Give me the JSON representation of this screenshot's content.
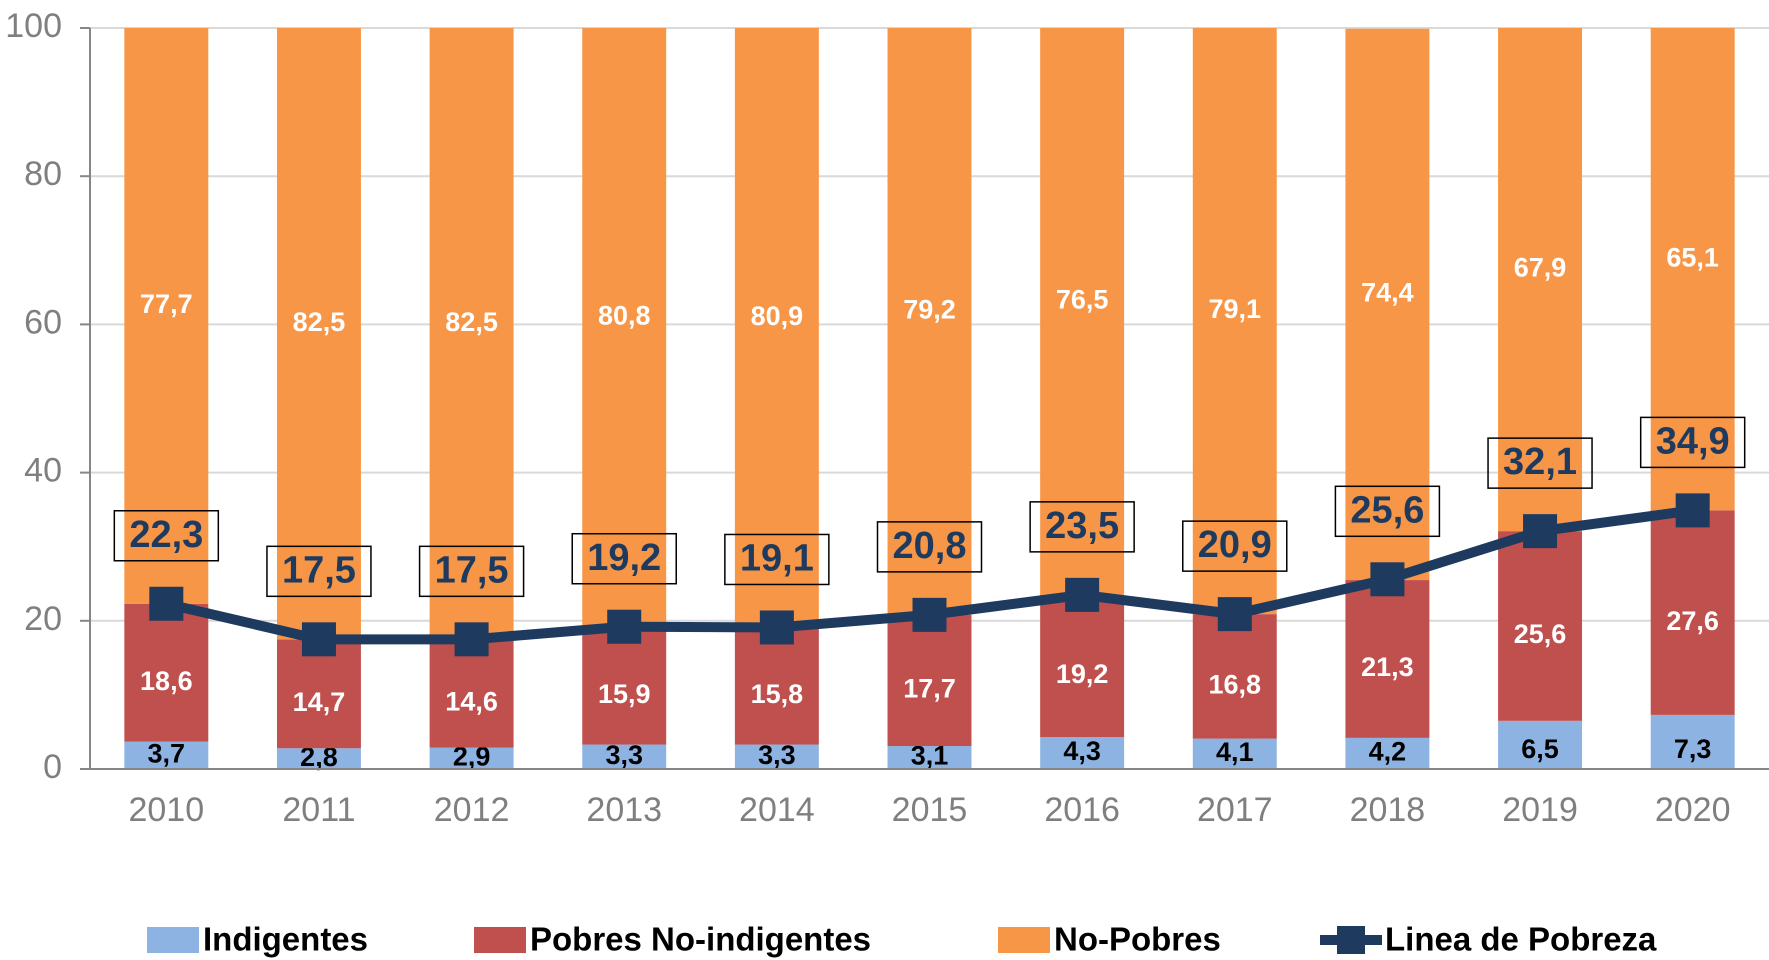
{
  "chart_data": {
    "type": "bar",
    "stacked": true,
    "categories": [
      "2010",
      "2011",
      "2012",
      "2013",
      "2014",
      "2015",
      "2016",
      "2017",
      "2018",
      "2019",
      "2020"
    ],
    "series": [
      {
        "name": "Indigentes",
        "color": "#8db3e2",
        "values": [
          3.7,
          2.8,
          2.9,
          3.3,
          3.3,
          3.1,
          4.3,
          4.1,
          4.2,
          6.5,
          7.3
        ],
        "value_labels": [
          "3,7",
          "2,8",
          "2,9",
          "3,3",
          "3,3",
          "3,1",
          "4,3",
          "4,1",
          "4,2",
          "6,5",
          "7,3"
        ]
      },
      {
        "name": "Pobres No-indigentes",
        "color": "#c0504d",
        "values": [
          18.6,
          14.7,
          14.6,
          15.9,
          15.8,
          17.7,
          19.2,
          16.8,
          21.3,
          25.6,
          27.6
        ],
        "value_labels": [
          "18,6",
          "14,7",
          "14,6",
          "15,9",
          "15,8",
          "17,7",
          "19,2",
          "16,8",
          "21,3",
          "25,6",
          "27,6"
        ]
      },
      {
        "name": "No-Pobres",
        "color": "#f79646",
        "values": [
          77.7,
          82.5,
          82.5,
          80.8,
          80.9,
          79.2,
          76.5,
          79.1,
          74.4,
          67.9,
          65.1
        ],
        "value_labels": [
          "77,7",
          "82,5",
          "82,5",
          "80,8",
          "80,9",
          "79,2",
          "76,5",
          "79,1",
          "74,4",
          "67,9",
          "65,1"
        ]
      },
      {
        "name": "Linea de Pobreza",
        "type": "line",
        "color": "#1f3a5f",
        "values": [
          22.3,
          17.5,
          17.5,
          19.2,
          19.1,
          20.8,
          23.5,
          20.9,
          25.6,
          32.1,
          34.9
        ],
        "value_labels": [
          "22,3",
          "17,5",
          "17,5",
          "19,2",
          "19,1",
          "20,8",
          "23,5",
          "20,9",
          "25,6",
          "32,1",
          "34,9"
        ]
      }
    ],
    "ylim": [
      0,
      100
    ],
    "yticks": [
      0,
      20,
      40,
      60,
      80,
      100
    ],
    "grid": true,
    "legend": "bottom"
  }
}
